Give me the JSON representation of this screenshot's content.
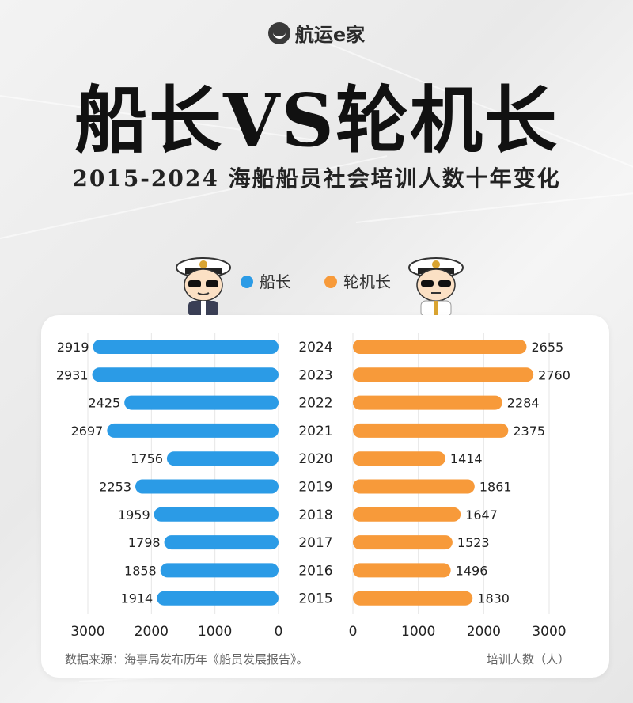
{
  "brand": {
    "name": "航运e家"
  },
  "title": "船长VS轮机长",
  "subtitle": "2015-2024 海船船员社会培训人数十年变化",
  "legend": [
    {
      "label": "船长",
      "color": "#2b9be6"
    },
    {
      "label": "轮机长",
      "color": "#f79a3a"
    }
  ],
  "chart_data": {
    "type": "bar",
    "orientation": "horizontal-butterfly",
    "categories": [
      "2024",
      "2023",
      "2022",
      "2021",
      "2020",
      "2019",
      "2018",
      "2017",
      "2016",
      "2015"
    ],
    "series": [
      {
        "name": "船长",
        "color": "#2b9be6",
        "values": [
          2919,
          2931,
          2425,
          2697,
          1756,
          2253,
          1959,
          1798,
          1858,
          1914
        ]
      },
      {
        "name": "轮机长",
        "color": "#f79a3a",
        "values": [
          2655,
          2760,
          2284,
          2375,
          1414,
          1861,
          1647,
          1523,
          1496,
          1830
        ]
      }
    ],
    "left_ticks": [
      "3000",
      "2000",
      "1000",
      "0"
    ],
    "right_ticks": [
      "0",
      "1000",
      "2000",
      "3000"
    ],
    "xlim": [
      0,
      3000
    ],
    "unit_label": "培训人数（人）",
    "source": "数据来源：海事局发布历年《船员发展报告》。"
  }
}
